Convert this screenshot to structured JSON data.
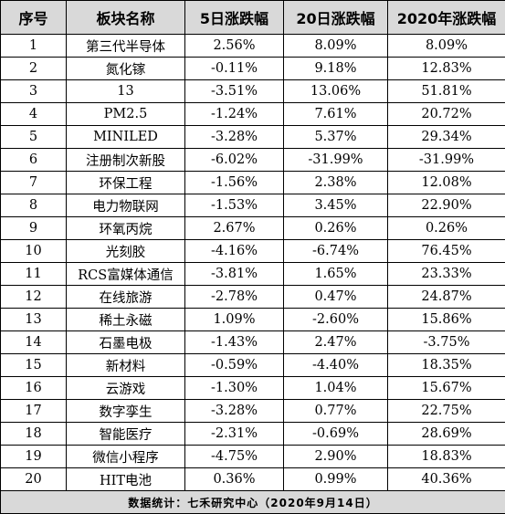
{
  "headers": [
    "序号",
    "板块名称",
    "5日涨跌幅",
    "20日涨跌幅",
    "2020年涨跌幅"
  ],
  "rows": [
    [
      "1",
      "第三代半导体",
      "2.56%",
      "8.09%",
      "8.09%"
    ],
    [
      "2",
      "氮化镓",
      "-0.11%",
      "9.18%",
      "12.83%"
    ],
    [
      "3",
      "13",
      "-3.51%",
      "13.06%",
      "51.81%"
    ],
    [
      "4",
      "PM2.5",
      "-1.24%",
      "7.61%",
      "20.72%"
    ],
    [
      "5",
      "MINILED",
      "-3.28%",
      "5.37%",
      "29.34%"
    ],
    [
      "6",
      "注册制次新股",
      "-6.02%",
      "-31.99%",
      "-31.99%"
    ],
    [
      "7",
      "环保工程",
      "-1.56%",
      "2.38%",
      "12.08%"
    ],
    [
      "8",
      "电力物联网",
      "-1.53%",
      "3.45%",
      "22.90%"
    ],
    [
      "9",
      "环氧丙烷",
      "2.67%",
      "0.26%",
      "0.26%"
    ],
    [
      "10",
      "光刻胶",
      "-4.16%",
      "-6.74%",
      "76.45%"
    ],
    [
      "11",
      "RCS富媒体通信",
      "-3.81%",
      "1.65%",
      "23.33%"
    ],
    [
      "12",
      "在线旅游",
      "-2.78%",
      "0.47%",
      "24.87%"
    ],
    [
      "13",
      "稀土永磁",
      "1.09%",
      "-2.60%",
      "15.86%"
    ],
    [
      "14",
      "石墨电极",
      "-1.43%",
      "2.47%",
      "-3.75%"
    ],
    [
      "15",
      "新材料",
      "-0.59%",
      "-4.40%",
      "18.35%"
    ],
    [
      "16",
      "云游戏",
      "-1.30%",
      "1.04%",
      "15.67%"
    ],
    [
      "17",
      "数字孪生",
      "-3.28%",
      "0.77%",
      "22.75%"
    ],
    [
      "18",
      "智能医疗",
      "-2.31%",
      "-0.69%",
      "28.69%"
    ],
    [
      "19",
      "微信小程序",
      "-4.75%",
      "2.90%",
      "18.83%"
    ],
    [
      "20",
      "HIT电池",
      "0.36%",
      "0.99%",
      "40.36%"
    ]
  ],
  "footer": "数据统计：七禾研究中心（2020年9月14日）"
}
